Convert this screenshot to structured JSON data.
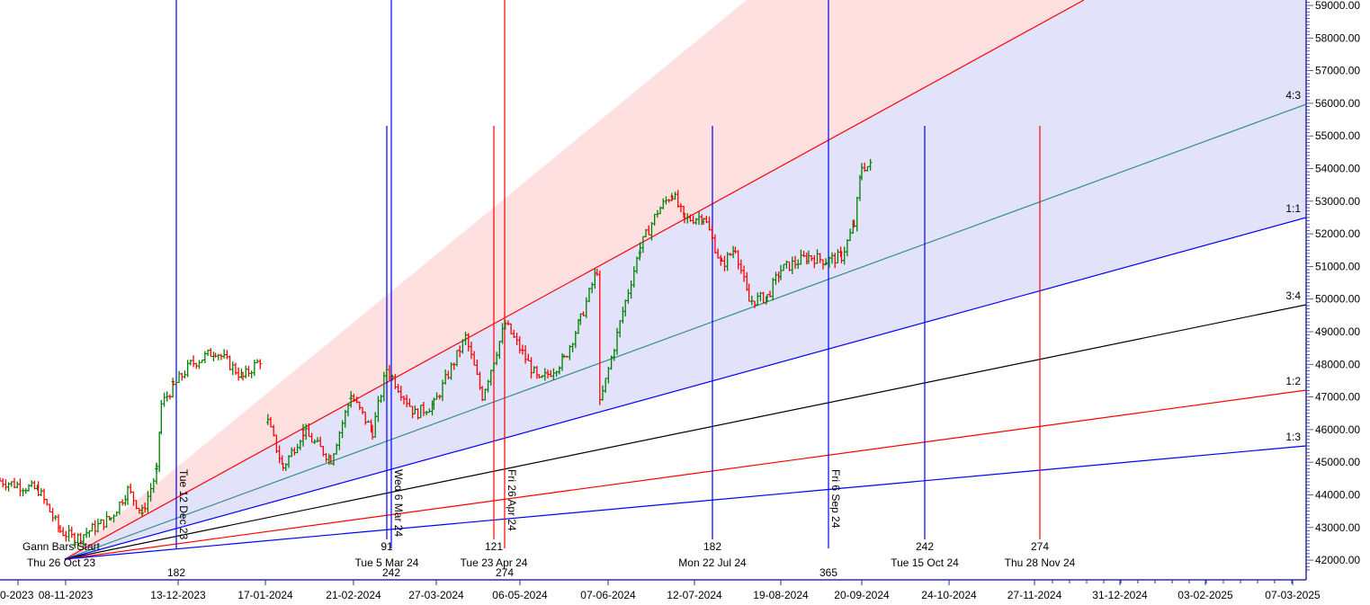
{
  "chart_data": {
    "type": "ohlc",
    "title": "",
    "y_axis": {
      "position": "right",
      "ticks": [
        "59000.00",
        "58000.00",
        "57000.00",
        "56000.00",
        "55000.00",
        "54000.00",
        "53000.00",
        "52000.00",
        "51000.00",
        "50000.00",
        "49000.00",
        "48000.00",
        "47000.00",
        "46000.00",
        "45000.00",
        "44000.00",
        "43000.00",
        "42000.00"
      ],
      "ylim": [
        41600,
        59150
      ]
    },
    "x_axis": {
      "ticks": [
        "0-2023",
        "08-11-2023",
        "13-12-2023",
        "17-01-2024",
        "21-02-2024",
        "27-03-2024",
        "06-05-2024",
        "07-06-2024",
        "12-07-2024",
        "19-08-2024",
        "20-09-2024",
        "24-10-2024",
        "27-11-2024",
        "31-12-2024",
        "03-02-2025",
        "07-03-2025"
      ]
    },
    "price_path": [
      [
        "2023-10-03",
        44430
      ],
      [
        "2023-10-17",
        44150
      ],
      [
        "2023-10-25",
        42900
      ],
      [
        "2023-10-31",
        42640
      ],
      [
        "2023-11-15",
        43300
      ],
      [
        "2023-11-22",
        44150
      ],
      [
        "2023-11-28",
        43460
      ],
      [
        "2023-12-04",
        44700
      ],
      [
        "2023-12-06",
        46770
      ],
      [
        "2023-12-11",
        47320
      ],
      [
        "2023-12-18",
        48000
      ],
      [
        "2023-12-28",
        48420
      ],
      [
        "2024-01-08",
        47600
      ],
      [
        "2024-01-15",
        48150
      ],
      [
        "2024-01-18",
        46220
      ],
      [
        "2024-01-24",
        44840
      ],
      [
        "2024-02-01",
        45940
      ],
      [
        "2024-02-12",
        45100
      ],
      [
        "2024-02-20",
        47040
      ],
      [
        "2024-02-29",
        45940
      ],
      [
        "2024-03-06",
        47870
      ],
      [
        "2024-03-18",
        46490
      ],
      [
        "2024-03-26",
        46770
      ],
      [
        "2024-04-10",
        48830
      ],
      [
        "2024-04-18",
        47040
      ],
      [
        "2024-04-29",
        49250
      ],
      [
        "2024-05-13",
        47460
      ],
      [
        "2024-05-22",
        48150
      ],
      [
        "2024-05-28",
        49380
      ],
      [
        "2024-06-03",
        50900
      ],
      [
        "2024-06-04",
        46770
      ],
      [
        "2024-06-14",
        49930
      ],
      [
        "2024-06-20",
        51580
      ],
      [
        "2024-06-27",
        52690
      ],
      [
        "2024-07-03",
        53240
      ],
      [
        "2024-07-08",
        52420
      ],
      [
        "2024-07-16",
        52550
      ],
      [
        "2024-07-24",
        51030
      ],
      [
        "2024-07-30",
        51580
      ],
      [
        "2024-08-05",
        49930
      ],
      [
        "2024-08-13",
        50070
      ],
      [
        "2024-08-19",
        50900
      ],
      [
        "2024-08-30",
        51310
      ],
      [
        "2024-09-06",
        51170
      ],
      [
        "2024-09-12",
        51310
      ],
      [
        "2024-09-17",
        52280
      ],
      [
        "2024-09-20",
        54070
      ],
      [
        "2024-09-24",
        54070
      ]
    ],
    "colors": {
      "up": "#008000",
      "down": "#ff0000",
      "axis": "#2e2e9e",
      "fan_upper_fill": "#ffe0e0",
      "fan_fill": "#e2e2fa"
    },
    "gann_fan": {
      "start_label": "Gann Bars Start",
      "start_date": "Thu 26 Oct 23",
      "start_price": 42000,
      "lines": [
        {
          "ratio": "2:1",
          "label": "",
          "color": "#ff0000"
        },
        {
          "ratio": "4:3",
          "label": "4:3",
          "color": "#3a8f8a"
        },
        {
          "ratio": "1:1",
          "label": "1:1",
          "color": "#0000ff"
        },
        {
          "ratio": "3:4",
          "label": "3:4",
          "color": "#000000"
        },
        {
          "ratio": "1:2",
          "label": "1:2",
          "color": "#ff0000"
        },
        {
          "ratio": "1:3",
          "label": "1:3",
          "color": "#0000ff"
        }
      ]
    },
    "time_cycles": [
      {
        "kind": "bars",
        "count": "91",
        "date": "Tue 5 Mar 24",
        "color": "#0000ff"
      },
      {
        "kind": "bars",
        "count": "121",
        "date": "Tue 23 Apr 24",
        "color": "#ff0000"
      },
      {
        "kind": "bars",
        "count": "182",
        "date": "Mon 22 Jul 24",
        "color": "#0000ff"
      },
      {
        "kind": "bars",
        "count": "242",
        "date": "Tue 15 Oct 24",
        "color": "#0000ff"
      },
      {
        "kind": "bars",
        "count": "274",
        "date": "Thu 28 Nov 24",
        "color": "#ff0000"
      },
      {
        "kind": "days",
        "count": "182",
        "date": "Tue 12 Dec 23",
        "color": "#0000ff"
      },
      {
        "kind": "days",
        "count": "242",
        "date": "Wed 6 Mar 24",
        "color": "#0000ff"
      },
      {
        "kind": "days",
        "count": "274",
        "date": "Fri 26 Apr 24",
        "color": "#ff0000"
      },
      {
        "kind": "days",
        "count": "365",
        "date": "Fri 6 Sep 24",
        "color": "#0000ff"
      }
    ]
  }
}
